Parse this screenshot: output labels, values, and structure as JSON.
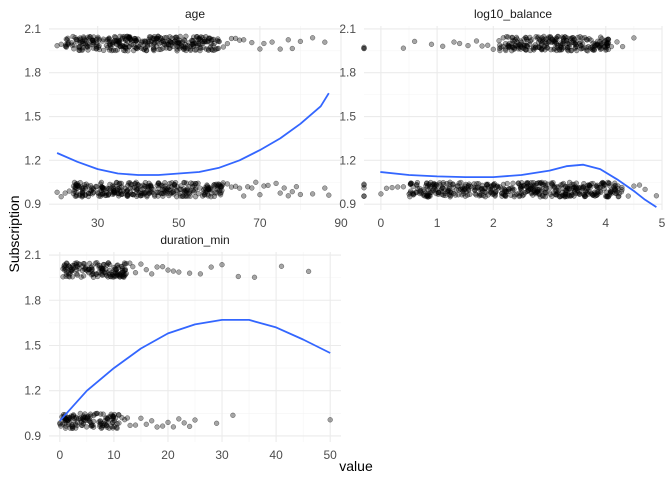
{
  "chart_data": {
    "type": "scatter",
    "layout": "facet_wrap",
    "xlabel": "value",
    "ylabel": "Subscription",
    "grid": true,
    "legend": "none",
    "colors": {
      "points": "#000000",
      "smooth": "#3366FF",
      "grid": "#EBEBEB"
    },
    "panels": [
      {
        "title": "age",
        "xlim": [
          18,
          90
        ],
        "ylim": [
          0.86,
          2.12
        ],
        "xticks": [
          30,
          50,
          70,
          90
        ],
        "yticks": [
          0.9,
          1.2,
          1.5,
          1.8,
          2.1
        ],
        "point_groups": [
          {
            "y": 2.0,
            "jitter": 0.05,
            "dense_x": [
              22,
              60
            ],
            "sparse_x": [
              20,
              21,
              61,
              62,
              63,
              64,
              65,
              66,
              68,
              70,
              71,
              73,
              75,
              77,
              78,
              80,
              83,
              86
            ]
          },
          {
            "y": 1.0,
            "jitter": 0.05,
            "dense_x": [
              24,
              61
            ],
            "sparse_x": [
              20,
              21,
              22,
              23,
              62,
              63,
              64,
              65,
              66,
              67,
              68,
              69,
              70,
              71,
              72,
              74,
              75,
              76,
              77,
              78,
              79,
              80,
              83,
              86,
              87
            ]
          }
        ],
        "smooth": {
          "x": [
            20,
            25,
            30,
            35,
            40,
            45,
            50,
            55,
            60,
            65,
            70,
            75,
            80,
            85,
            87
          ],
          "y": [
            1.25,
            1.19,
            1.14,
            1.11,
            1.1,
            1.1,
            1.11,
            1.12,
            1.15,
            1.2,
            1.27,
            1.35,
            1.45,
            1.57,
            1.66
          ]
        }
      },
      {
        "title": "log10_balance",
        "xlim": [
          -0.3,
          5.0
        ],
        "ylim": [
          0.86,
          2.12
        ],
        "xticks": [
          0,
          1,
          2,
          3,
          4,
          5
        ],
        "yticks": [
          0.9,
          1.2,
          1.5,
          1.8,
          2.1
        ],
        "point_groups": [
          {
            "y": 2.0,
            "jitter": 0.05,
            "dense_x": [
              2.1,
              4.05
            ],
            "sparse_x": [
              -0.3,
              -0.3,
              -0.3,
              0.4,
              0.6,
              0.9,
              1.1,
              1.3,
              1.4,
              1.55,
              1.7,
              1.8,
              1.9,
              2.0,
              4.1,
              4.2,
              4.3,
              4.5
            ]
          },
          {
            "y": 1.0,
            "jitter": 0.05,
            "dense_x": [
              0.5,
              4.3
            ],
            "sparse_x": [
              -0.3,
              -0.3,
              -0.3,
              -0.3,
              -0.3,
              0.0,
              0.1,
              0.2,
              0.3,
              0.4,
              4.4,
              4.5,
              4.6,
              4.7,
              4.9
            ]
          }
        ],
        "smooth": {
          "x": [
            -0.01,
            0.5,
            1.0,
            1.5,
            2.0,
            2.5,
            3.0,
            3.3,
            3.6,
            3.9,
            4.2,
            4.5,
            4.7,
            4.9
          ],
          "y": [
            1.12,
            1.1,
            1.09,
            1.085,
            1.085,
            1.1,
            1.13,
            1.16,
            1.17,
            1.14,
            1.07,
            0.99,
            0.93,
            0.88
          ]
        }
      },
      {
        "title": "duration_min",
        "xlim": [
          -2,
          52
        ],
        "ylim": [
          0.86,
          2.12
        ],
        "xticks": [
          0,
          10,
          20,
          30,
          40,
          50
        ],
        "yticks": [
          0.9,
          1.2,
          1.5,
          1.8,
          2.1
        ],
        "point_groups": [
          {
            "y": 2.0,
            "jitter": 0.05,
            "dense_x": [
              0.5,
              13
            ],
            "sparse_x": [
              13.5,
              14,
              15,
              16,
              17,
              18,
              19,
              20,
              21,
              22,
              24,
              26,
              28,
              30,
              33,
              36,
              41,
              46
            ]
          },
          {
            "y": 1.0,
            "jitter": 0.05,
            "dense_x": [
              0,
              11
            ],
            "sparse_x": [
              11.5,
              12,
              12.5,
              13,
              14,
              15,
              16,
              17,
              18,
              19,
              20,
              21,
              22,
              23,
              24,
              25,
              29,
              32,
              50
            ]
          }
        ],
        "smooth": {
          "x": [
            0,
            2.5,
            5,
            10,
            15,
            20,
            25,
            30,
            35,
            40,
            45,
            50
          ],
          "y": [
            1.0,
            1.1,
            1.2,
            1.35,
            1.48,
            1.58,
            1.64,
            1.67,
            1.67,
            1.62,
            1.54,
            1.45
          ]
        }
      }
    ]
  }
}
